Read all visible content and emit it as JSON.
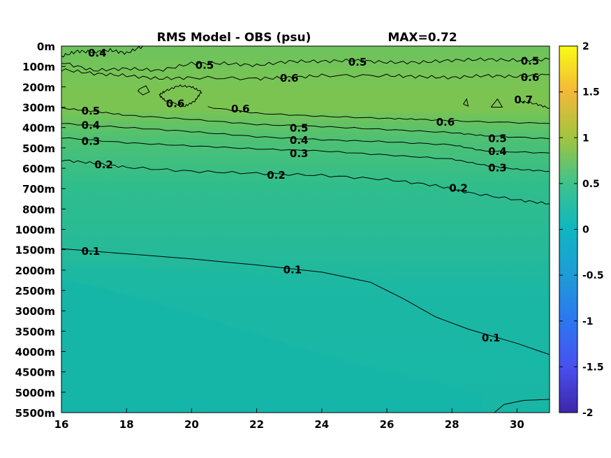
{
  "chart_data": {
    "type": "heatmap",
    "title": "RMS Model - OBS (psu)",
    "max_label": "MAX=0.72",
    "x_ticks": [
      "16",
      "18",
      "20",
      "22",
      "24",
      "26",
      "28",
      "30"
    ],
    "x_tick_values": [
      16,
      18,
      20,
      22,
      24,
      26,
      28,
      30
    ],
    "xlim": [
      16,
      31
    ],
    "y_ticks": [
      "0m",
      "100m",
      "200m",
      "300m",
      "400m",
      "500m",
      "600m",
      "700m",
      "800m",
      "1000m",
      "1500m",
      "2000m",
      "2500m",
      "3000m",
      "3500m",
      "4000m",
      "4500m",
      "5000m",
      "5500m"
    ],
    "colorbar": {
      "ticks": [
        "2",
        "1.5",
        "1",
        "0.5",
        "0",
        "-0.5",
        "-1",
        "-1.5",
        "-2"
      ],
      "range": [
        -2,
        2
      ],
      "colormap": "parula"
    },
    "contour_levels": [
      0.1,
      0.2,
      0.3,
      0.4,
      0.5,
      0.6,
      0.7
    ],
    "contour_labels": [
      {
        "text": "0.4",
        "x": 17.1,
        "depth_index": 0.3
      },
      {
        "text": "0.5",
        "x": 20.4,
        "depth_index": 0.9
      },
      {
        "text": "0.5",
        "x": 25.1,
        "depth_index": 0.75
      },
      {
        "text": "0.5",
        "x": 30.4,
        "depth_index": 0.7
      },
      {
        "text": "0.6",
        "x": 23.0,
        "depth_index": 1.55
      },
      {
        "text": "0.6",
        "x": 30.4,
        "depth_index": 1.5
      },
      {
        "text": "0.7",
        "x": 30.2,
        "depth_index": 2.6
      },
      {
        "text": "0.6",
        "x": 19.5,
        "depth_index": 2.8
      },
      {
        "text": "0.6",
        "x": 21.5,
        "depth_index": 3.05
      },
      {
        "text": "0.6",
        "x": 27.8,
        "depth_index": 3.7
      },
      {
        "text": "0.5",
        "x": 16.9,
        "depth_index": 3.15
      },
      {
        "text": "0.4",
        "x": 16.9,
        "depth_index": 3.85
      },
      {
        "text": "0.3",
        "x": 16.9,
        "depth_index": 4.65
      },
      {
        "text": "0.2",
        "x": 17.3,
        "depth_index": 5.8
      },
      {
        "text": "0.5",
        "x": 23.3,
        "depth_index": 4.0
      },
      {
        "text": "0.4",
        "x": 23.3,
        "depth_index": 4.6
      },
      {
        "text": "0.3",
        "x": 23.3,
        "depth_index": 5.25
      },
      {
        "text": "0.2",
        "x": 22.6,
        "depth_index": 6.3
      },
      {
        "text": "0.5",
        "x": 29.4,
        "depth_index": 4.5
      },
      {
        "text": "0.4",
        "x": 29.4,
        "depth_index": 5.15
      },
      {
        "text": "0.3",
        "x": 29.4,
        "depth_index": 5.95
      },
      {
        "text": "0.2",
        "x": 28.2,
        "depth_index": 6.95
      },
      {
        "text": "0.1",
        "x": 16.9,
        "depth_index": 10.05
      },
      {
        "text": "0.1",
        "x": 23.1,
        "depth_index": 10.95
      },
      {
        "text": "0.1",
        "x": 29.2,
        "depth_index": 14.3
      }
    ],
    "grid": false,
    "legend": "none"
  }
}
